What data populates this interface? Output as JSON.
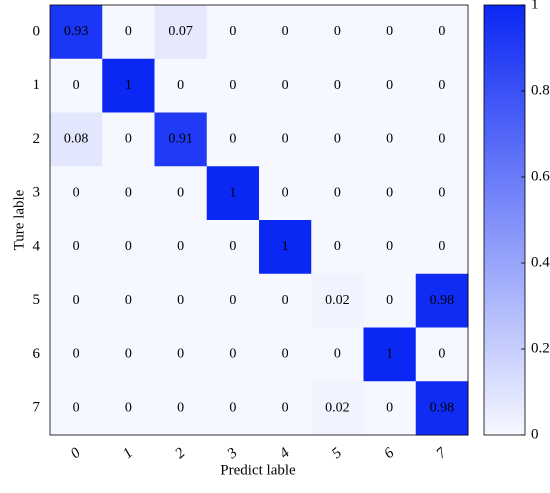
{
  "chart_data": {
    "type": "heatmap",
    "x_label": "Predict lable",
    "y_label": "Ture lable",
    "x_categories": [
      "0",
      "1",
      "2",
      "3",
      "4",
      "5",
      "6",
      "7"
    ],
    "y_categories": [
      "0",
      "1",
      "2",
      "3",
      "4",
      "5",
      "6",
      "7"
    ],
    "values": [
      [
        0.93,
        0,
        0.07,
        0,
        0,
        0,
        0,
        0
      ],
      [
        0,
        1,
        0,
        0,
        0,
        0,
        0,
        0
      ],
      [
        0.08,
        0,
        0.91,
        0,
        0,
        0,
        0,
        0
      ],
      [
        0,
        0,
        0,
        1,
        0,
        0,
        0,
        0
      ],
      [
        0,
        0,
        0,
        0,
        1,
        0,
        0,
        0
      ],
      [
        0,
        0,
        0,
        0,
        0,
        0.02,
        0,
        0.98
      ],
      [
        0,
        0,
        0,
        0,
        0,
        0,
        1,
        0
      ],
      [
        0,
        0,
        0,
        0,
        0,
        0.02,
        0,
        0.98
      ]
    ],
    "colormap": [
      "#f6f8ff",
      "#0b27f4"
    ],
    "clim": [
      0,
      1
    ],
    "colorbar_ticks": [
      0,
      0.2,
      0.4,
      0.6,
      0.8,
      1
    ]
  }
}
